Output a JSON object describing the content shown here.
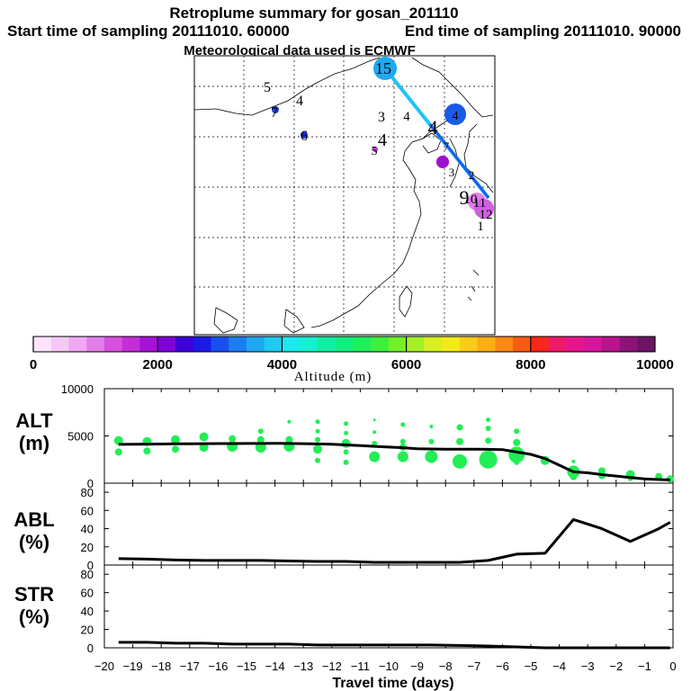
{
  "header": {
    "title": "Retroplume summary for gosan_201110",
    "start": "Start time of sampling 20111010. 60000",
    "end": "End time of sampling 20111010. 90000",
    "met": "Meteorological data used is ECMWF"
  },
  "map": {
    "labels": [
      {
        "text": "5",
        "color": "#000000"
      },
      {
        "text": "4",
        "color": "#000000"
      },
      {
        "text": "6",
        "color": "#000000"
      },
      {
        "text": "7",
        "color": "#000000"
      },
      {
        "text": "3",
        "color": "#000000"
      },
      {
        "text": "4",
        "color": "#000000"
      },
      {
        "text": "4",
        "color": "#000000"
      },
      {
        "text": "4",
        "color": "#000000"
      },
      {
        "text": "15",
        "color": "#000000"
      },
      {
        "text": "4",
        "color": "#ffffff"
      },
      {
        "text": "5",
        "color": "#000000"
      },
      {
        "text": "3",
        "color": "#000000"
      },
      {
        "text": "2",
        "color": "#000000"
      },
      {
        "text": "7",
        "color": "#000000"
      },
      {
        "text": "9",
        "color": "#000000"
      },
      {
        "text": "10",
        "color": "#000000"
      },
      {
        "text": "11",
        "color": "#000000"
      },
      {
        "text": "12",
        "color": "#000000"
      },
      {
        "text": "1",
        "color": "#000000"
      }
    ]
  },
  "colorbar": {
    "colors": [
      "#fde4fb",
      "#f6c8f5",
      "#eea9f0",
      "#e27ee8",
      "#d94fe0",
      "#c42dd8",
      "#a612d6",
      "#8000d9",
      "#3d00d8",
      "#1a1ae8",
      "#1a4ef0",
      "#1a7ef2",
      "#1fa8f2",
      "#1fcaf0",
      "#1de8ee",
      "#16f0d0",
      "#10eea6",
      "#0fee80",
      "#1ef05c",
      "#3cf03c",
      "#72f02a",
      "#a6f02a",
      "#d6f024",
      "#f4ea1a",
      "#f8cc18",
      "#fbae14",
      "#fb8a14",
      "#fb5c14",
      "#f8281a",
      "#f01a6a",
      "#e8148c",
      "#d6149c",
      "#b8148c",
      "#8c1478",
      "#6c1464"
    ],
    "ticks": [
      "0",
      "2000",
      "4000",
      "6000",
      "8000",
      "10000"
    ],
    "label": "Altitude (m)"
  },
  "chart_data": [
    {
      "type": "line",
      "panel": "ALT",
      "ylabel": "ALT\n(m)",
      "xlabel": "Travel time (days)",
      "xlim": [
        -20,
        0
      ],
      "ylim": [
        0,
        10000
      ],
      "yticks": [
        "10000",
        "5000",
        "0"
      ],
      "x": [
        -19.5,
        -19,
        -18.5,
        -18,
        -17.5,
        -17,
        -16.5,
        -16,
        -15.5,
        -15,
        -14.5,
        -14,
        -13.5,
        -13,
        -12.5,
        -12,
        -11.5,
        -11,
        -10.5,
        -10,
        -9.5,
        -9,
        -8.5,
        -8,
        -7.5,
        -7,
        -6.5,
        -6,
        -5.5,
        -5,
        -4.5,
        -4,
        -3.5,
        -3,
        -2.5,
        -2,
        -1.5,
        -1,
        -0.5,
        -0.1
      ],
      "values": [
        4100,
        4120,
        4130,
        4140,
        4160,
        4170,
        4180,
        4190,
        4190,
        4200,
        4200,
        4210,
        4200,
        4180,
        4150,
        4120,
        4050,
        3980,
        3900,
        3820,
        3750,
        3650,
        3620,
        3600,
        3600,
        3600,
        3580,
        3550,
        3300,
        3050,
        2600,
        1900,
        1200,
        1100,
        900,
        750,
        600,
        450,
        380,
        340
      ],
      "scatter": [
        {
          "x": -19.5,
          "y": 4500,
          "s": 5
        },
        {
          "x": -19.5,
          "y": 3300,
          "s": 4
        },
        {
          "x": -18.5,
          "y": 4400,
          "s": 5
        },
        {
          "x": -18.5,
          "y": 3400,
          "s": 4
        },
        {
          "x": -17.5,
          "y": 4600,
          "s": 5
        },
        {
          "x": -17.5,
          "y": 3600,
          "s": 4
        },
        {
          "x": -16.5,
          "y": 4900,
          "s": 5
        },
        {
          "x": -16.5,
          "y": 3800,
          "s": 5
        },
        {
          "x": -15.5,
          "y": 4700,
          "s": 4
        },
        {
          "x": -15.5,
          "y": 3900,
          "s": 6
        },
        {
          "x": -14.5,
          "y": 5500,
          "s": 3
        },
        {
          "x": -14.5,
          "y": 4600,
          "s": 4
        },
        {
          "x": -14.5,
          "y": 3800,
          "s": 6
        },
        {
          "x": -13.5,
          "y": 6500,
          "s": 2
        },
        {
          "x": -13.5,
          "y": 4600,
          "s": 4
        },
        {
          "x": -13.5,
          "y": 3900,
          "s": 6
        },
        {
          "x": -12.5,
          "y": 6500,
          "s": 2.5
        },
        {
          "x": -12.5,
          "y": 5500,
          "s": 2.5
        },
        {
          "x": -12.5,
          "y": 4600,
          "s": 3
        },
        {
          "x": -12.5,
          "y": 3600,
          "s": 5
        },
        {
          "x": -12.5,
          "y": 2400,
          "s": 3
        },
        {
          "x": -11.5,
          "y": 6300,
          "s": 2.5
        },
        {
          "x": -11.5,
          "y": 5300,
          "s": 2.5
        },
        {
          "x": -11.5,
          "y": 4200,
          "s": 5
        },
        {
          "x": -11.5,
          "y": 3300,
          "s": 3
        },
        {
          "x": -11.5,
          "y": 2200,
          "s": 3
        },
        {
          "x": -10.5,
          "y": 6700,
          "s": 1.5
        },
        {
          "x": -10.5,
          "y": 5400,
          "s": 2
        },
        {
          "x": -10.5,
          "y": 4200,
          "s": 3
        },
        {
          "x": -10.5,
          "y": 2800,
          "s": 6
        },
        {
          "x": -9.5,
          "y": 6200,
          "s": 2.5
        },
        {
          "x": -9.5,
          "y": 4400,
          "s": 3
        },
        {
          "x": -9.5,
          "y": 3800,
          "s": 4
        },
        {
          "x": -9.5,
          "y": 2800,
          "s": 6
        },
        {
          "x": -8.5,
          "y": 6000,
          "s": 2
        },
        {
          "x": -8.5,
          "y": 4400,
          "s": 3
        },
        {
          "x": -8.5,
          "y": 2800,
          "s": 7
        },
        {
          "x": -7.5,
          "y": 5900,
          "s": 3.5
        },
        {
          "x": -7.5,
          "y": 4400,
          "s": 4
        },
        {
          "x": -7.5,
          "y": 2300,
          "s": 8
        },
        {
          "x": -6.5,
          "y": 6700,
          "s": 2.5
        },
        {
          "x": -6.5,
          "y": 5800,
          "s": 3
        },
        {
          "x": -6.5,
          "y": 4500,
          "s": 3.5
        },
        {
          "x": -6.5,
          "y": 2500,
          "s": 10
        },
        {
          "x": -5.5,
          "y": 5500,
          "s": 3
        },
        {
          "x": -5.5,
          "y": 4300,
          "s": 4
        },
        {
          "x": -5.5,
          "y": 3000,
          "s": 9
        },
        {
          "x": -5.5,
          "y": 2200,
          "s": 3
        },
        {
          "x": -4.5,
          "y": 2400,
          "s": 5
        },
        {
          "x": -3.5,
          "y": 2300,
          "s": 2
        },
        {
          "x": -3.5,
          "y": 1200,
          "s": 7
        },
        {
          "x": -3.5,
          "y": 700,
          "s": 4
        },
        {
          "x": -2.5,
          "y": 1300,
          "s": 4
        },
        {
          "x": -2.5,
          "y": 800,
          "s": 4
        },
        {
          "x": -1.5,
          "y": 900,
          "s": 5
        },
        {
          "x": -1.5,
          "y": 500,
          "s": 3
        },
        {
          "x": -0.5,
          "y": 700,
          "s": 4
        },
        {
          "x": -0.1,
          "y": 450,
          "s": 4
        }
      ]
    },
    {
      "type": "line",
      "panel": "ABL",
      "ylabel": "ABL\n(%)",
      "xlim": [
        -20,
        0
      ],
      "ylim": [
        0,
        90
      ],
      "yticks": [
        "80",
        "60",
        "40",
        "20",
        "0"
      ],
      "x": [
        -19.5,
        -18.5,
        -17.5,
        -16.5,
        -15.5,
        -14.5,
        -13.5,
        -12.5,
        -11.5,
        -10.5,
        -9.5,
        -8.5,
        -7.5,
        -6.5,
        -5.5,
        -4.5,
        -3.5,
        -2.5,
        -1.5,
        -0.5,
        -0.1
      ],
      "values": [
        7,
        6.5,
        5.5,
        5,
        5,
        5,
        4.5,
        4,
        4,
        3,
        3,
        3,
        3,
        5,
        12,
        13,
        50,
        40,
        26,
        40,
        47
      ]
    },
    {
      "type": "line",
      "panel": "STR",
      "ylabel": "STR\n(%)",
      "xlabel": "Travel time (days)",
      "xlim": [
        -20,
        0
      ],
      "ylim": [
        0,
        90
      ],
      "yticks": [
        "80",
        "60",
        "40",
        "20",
        "0"
      ],
      "xticks": [
        "−20",
        "−19",
        "−18",
        "−17",
        "−16",
        "−15",
        "−14",
        "−13",
        "−12",
        "−11",
        "−10",
        "−9",
        "−8",
        "−7",
        "−6",
        "−5",
        "−4",
        "−3",
        "−2",
        "−1",
        "0"
      ],
      "x": [
        -19.5,
        -18.5,
        -17.5,
        -16.5,
        -15.5,
        -14.5,
        -13.5,
        -12.5,
        -11.5,
        -10.5,
        -9.5,
        -8.5,
        -7.5,
        -6.5,
        -5.5,
        -4.5,
        -3.5,
        -2.5,
        -1.5,
        -0.5,
        -0.1
      ],
      "values": [
        6,
        6,
        5,
        5,
        4,
        4,
        4,
        3,
        3,
        3,
        3,
        3,
        2.5,
        2,
        1,
        0,
        0,
        0,
        0,
        0,
        0
      ]
    }
  ]
}
